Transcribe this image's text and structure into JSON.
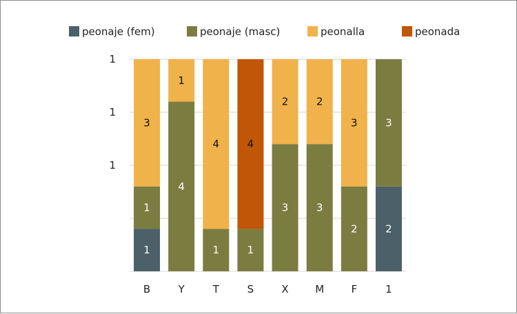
{
  "chart_data": {
    "type": "bar",
    "stacked": true,
    "percent_stacked": true,
    "categories": [
      "B",
      "Y",
      "T",
      "S",
      "X",
      "M",
      "F",
      "1"
    ],
    "series": [
      {
        "name": "peonaje (fem)",
        "color": "#4b6068",
        "values": [
          1,
          0,
          0,
          0,
          0,
          0,
          0,
          2
        ]
      },
      {
        "name": "peonaje (masc)",
        "color": "#7b7c40",
        "values": [
          1,
          4,
          1,
          1,
          3,
          3,
          2,
          3
        ]
      },
      {
        "name": "peonalla",
        "color": "#f0b24a",
        "values": [
          3,
          1,
          4,
          0,
          2,
          2,
          3,
          0
        ]
      },
      {
        "name": "peonada",
        "color": "#c05606",
        "values": [
          0,
          0,
          0,
          4,
          0,
          0,
          0,
          0
        ]
      }
    ],
    "y_tick_labels": [
      "",
      "1",
      "1",
      "1"
    ],
    "legend_position": "top",
    "grid": true
  }
}
